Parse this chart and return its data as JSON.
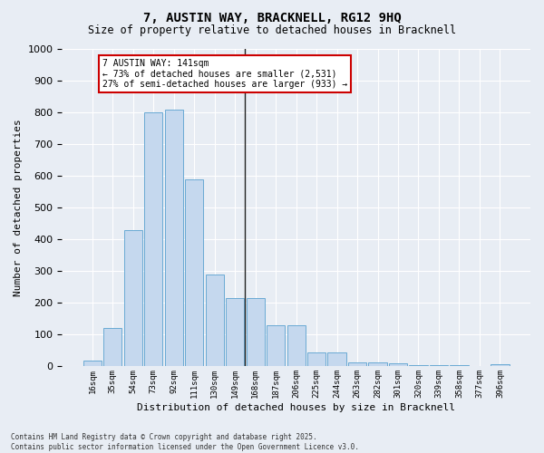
{
  "title": "7, AUSTIN WAY, BRACKNELL, RG12 9HQ",
  "subtitle": "Size of property relative to detached houses in Bracknell",
  "xlabel": "Distribution of detached houses by size in Bracknell",
  "ylabel": "Number of detached properties",
  "categories": [
    "16sqm",
    "35sqm",
    "54sqm",
    "73sqm",
    "92sqm",
    "111sqm",
    "130sqm",
    "149sqm",
    "168sqm",
    "187sqm",
    "206sqm",
    "225sqm",
    "244sqm",
    "263sqm",
    "282sqm",
    "301sqm",
    "320sqm",
    "339sqm",
    "358sqm",
    "377sqm",
    "396sqm"
  ],
  "values": [
    18,
    120,
    430,
    800,
    810,
    590,
    290,
    215,
    215,
    130,
    130,
    45,
    45,
    12,
    12,
    10,
    5,
    5,
    5,
    0,
    8
  ],
  "bar_color": "#c5d8ee",
  "bar_edge_color": "#6aaad4",
  "background_color": "#e8edf4",
  "ylim": [
    0,
    1000
  ],
  "yticks": [
    0,
    100,
    200,
    300,
    400,
    500,
    600,
    700,
    800,
    900,
    1000
  ],
  "property_line_bin": 7.5,
  "annotation_title": "7 AUSTIN WAY: 141sqm",
  "annotation_line1": "← 73% of detached houses are smaller (2,531)",
  "annotation_line2": "27% of semi-detached houses are larger (933) →",
  "annotation_box_color": "#ffffff",
  "annotation_border_color": "#cc0000",
  "footer_line1": "Contains HM Land Registry data © Crown copyright and database right 2025.",
  "footer_line2": "Contains public sector information licensed under the Open Government Licence v3.0.",
  "grid_color": "#ffffff"
}
